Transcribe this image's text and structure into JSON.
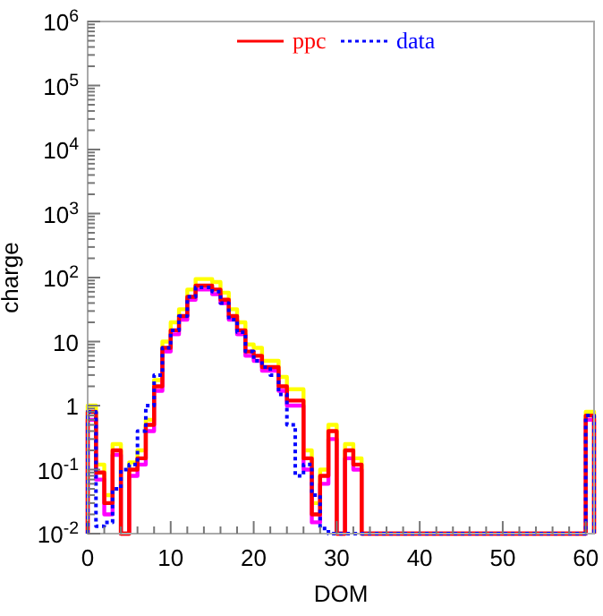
{
  "chart_data": {
    "type": "histogram",
    "xlabel": "DOM",
    "ylabel": "charge",
    "log": "y",
    "legend": "top",
    "xlim": [
      0,
      61
    ],
    "ylim": [
      0.01,
      1000000
    ],
    "xticks": [
      0,
      {
        "value": 2,
        "label": null
      },
      {
        "value": 4,
        "label": null
      },
      {
        "value": 6,
        "label": null
      },
      {
        "value": 8,
        "label": null
      },
      10,
      {
        "value": 12,
        "label": null
      },
      {
        "value": 14,
        "label": null
      },
      {
        "value": 16,
        "label": null
      },
      {
        "value": 18,
        "label": null
      },
      20,
      {
        "value": 22,
        "label": null
      },
      {
        "value": 24,
        "label": null
      },
      {
        "value": 26,
        "label": null
      },
      {
        "value": 28,
        "label": null
      },
      30,
      {
        "value": 32,
        "label": null
      },
      {
        "value": 34,
        "label": null
      },
      {
        "value": 36,
        "label": null
      },
      {
        "value": 38,
        "label": null
      },
      40,
      {
        "value": 42,
        "label": null
      },
      {
        "value": 44,
        "label": null
      },
      {
        "value": 46,
        "label": null
      },
      {
        "value": 48,
        "label": null
      },
      50,
      {
        "value": 52,
        "label": null
      },
      {
        "value": 54,
        "label": null
      },
      {
        "value": 56,
        "label": null
      },
      {
        "value": 58,
        "label": null
      },
      60
    ],
    "yticks": [
      {
        "value": 0.01,
        "label": "10$^{-2}$"
      },
      {
        "value": 0.02,
        "label": null
      },
      {
        "value": 0.03,
        "label": null
      },
      {
        "value": 0.04,
        "label": null
      },
      {
        "value": 0.05,
        "label": null
      },
      {
        "value": 0.06,
        "label": null
      },
      {
        "value": 0.07,
        "label": null
      },
      {
        "value": 0.08,
        "label": null
      },
      {
        "value": 0.09,
        "label": null
      },
      {
        "value": 0.1,
        "label": "10$^{-1}$"
      },
      {
        "value": 0.2,
        "label": null
      },
      {
        "value": 0.3,
        "label": null
      },
      {
        "value": 0.4,
        "label": null
      },
      {
        "value": 0.5,
        "label": null
      },
      {
        "value": 0.6,
        "label": null
      },
      {
        "value": 0.7,
        "label": null
      },
      {
        "value": 0.8,
        "label": null
      },
      {
        "value": 0.9,
        "label": null
      },
      1,
      {
        "value": 2,
        "label": null
      },
      {
        "value": 3,
        "label": null
      },
      {
        "value": 4,
        "label": null
      },
      {
        "value": 5,
        "label": null
      },
      {
        "value": 6,
        "label": null
      },
      {
        "value": 7,
        "label": null
      },
      {
        "value": 8,
        "label": null
      },
      {
        "value": 9,
        "label": null
      },
      10,
      {
        "value": 20,
        "label": null
      },
      {
        "value": 30,
        "label": null
      },
      {
        "value": 40,
        "label": null
      },
      {
        "value": 50,
        "label": null
      },
      {
        "value": 60,
        "label": null
      },
      {
        "value": 70,
        "label": null
      },
      {
        "value": 80,
        "label": null
      },
      {
        "value": 90,
        "label": null
      },
      {
        "value": 100,
        "label": "10$^{2}$"
      },
      {
        "value": 200,
        "label": null
      },
      {
        "value": 300,
        "label": null
      },
      {
        "value": 400,
        "label": null
      },
      {
        "value": 500,
        "label": null
      },
      {
        "value": 600,
        "label": null
      },
      {
        "value": 700,
        "label": null
      },
      {
        "value": 800,
        "label": null
      },
      {
        "value": 900,
        "label": null
      },
      {
        "value": 1000,
        "label": "10$^{3}$"
      },
      {
        "value": 2000,
        "label": null
      },
      {
        "value": 3000,
        "label": null
      },
      {
        "value": 4000,
        "label": null
      },
      {
        "value": 5000,
        "label": null
      },
      {
        "value": 6000,
        "label": null
      },
      {
        "value": 7000,
        "label": null
      },
      {
        "value": 8000,
        "label": null
      },
      {
        "value": 9000,
        "label": null
      },
      {
        "value": 10000,
        "label": "10$^{4}$"
      },
      {
        "value": 20000,
        "label": null
      },
      {
        "value": 30000,
        "label": null
      },
      {
        "value": 40000,
        "label": null
      },
      {
        "value": 50000,
        "label": null
      },
      {
        "value": 60000,
        "label": null
      },
      {
        "value": 70000,
        "label": null
      },
      {
        "value": 80000,
        "label": null
      },
      {
        "value": 90000,
        "label": null
      },
      {
        "value": 100000,
        "label": "10$^{5}$"
      },
      {
        "value": 200000,
        "label": null
      },
      {
        "value": 300000,
        "label": null
      },
      {
        "value": 400000,
        "label": null
      },
      {
        "value": 500000,
        "label": null
      },
      {
        "value": 600000,
        "label": null
      },
      {
        "value": 700000,
        "label": null
      },
      {
        "value": 800000,
        "label": null
      },
      {
        "value": 900000,
        "label": null
      },
      {
        "value": 1000000,
        "label": "10$^{6}$"
      }
    ],
    "bins": [
      0,
      1,
      2,
      3,
      4,
      5,
      6,
      7,
      8,
      9,
      10,
      11,
      12,
      13,
      14,
      15,
      16,
      17,
      18,
      19,
      20,
      21,
      22,
      23,
      24,
      25,
      26,
      27,
      28,
      29,
      30,
      31,
      32,
      33,
      34,
      35,
      36,
      37,
      38,
      39,
      40,
      41,
      42,
      43,
      44,
      45,
      46,
      47,
      48,
      49,
      50,
      51,
      52,
      53,
      54,
      55,
      56,
      57,
      58,
      59,
      60,
      61
    ],
    "series": [
      {
        "color": "#ffff00",
        "line_style": "solid",
        "values": [
          1,
          0.12,
          0.04,
          0.25,
          null,
          0.13,
          0.2,
          0.6,
          2.5,
          10,
          20,
          32,
          65,
          95,
          95,
          85,
          58,
          32,
          20,
          9,
          8,
          5,
          5,
          2.8,
          1.8,
          1.8,
          0.2,
          0.03,
          0.1,
          0.5,
          null,
          0.25,
          0.15,
          null,
          null,
          null,
          null,
          null,
          null,
          null,
          null,
          null,
          null,
          null,
          null,
          null,
          null,
          null,
          null,
          null,
          null,
          null,
          null,
          null,
          null,
          null,
          null,
          null,
          null,
          null,
          0.8
        ]
      },
      {
        "color": "#ff00ff",
        "line_style": "solid",
        "values": [
          0.6,
          0.07,
          0.02,
          0.17,
          null,
          0.08,
          0.12,
          0.4,
          1.7,
          7,
          13,
          22,
          45,
          65,
          65,
          55,
          40,
          22,
          13,
          6,
          5,
          3.5,
          3.5,
          1.7,
          1,
          1,
          0.1,
          0.015,
          0.06,
          0.3,
          null,
          0.15,
          0.1,
          null,
          null,
          null,
          null,
          null,
          null,
          null,
          null,
          null,
          null,
          null,
          null,
          null,
          null,
          null,
          null,
          null,
          null,
          null,
          null,
          null,
          null,
          null,
          null,
          null,
          null,
          null,
          0.6
        ]
      },
      {
        "name": "ppc",
        "color": "#ff0000",
        "line_style": "solid",
        "values": [
          0.8,
          0.09,
          0.03,
          0.2,
          null,
          0.1,
          0.15,
          0.5,
          2,
          8,
          15,
          25,
          50,
          75,
          75,
          65,
          45,
          25,
          15,
          7,
          6,
          4,
          4,
          2,
          1.2,
          1.2,
          0.15,
          0.02,
          0.08,
          0.4,
          null,
          0.2,
          0.12,
          null,
          null,
          null,
          null,
          null,
          null,
          null,
          null,
          null,
          null,
          null,
          null,
          null,
          null,
          null,
          null,
          null,
          null,
          null,
          null,
          null,
          null,
          null,
          null,
          null,
          null,
          null,
          0.7
        ]
      },
      {
        "name": "data",
        "color": "#0000ff",
        "line_style": "dotted",
        "values": [
          0.8,
          0.013,
          0.015,
          0.05,
          0.1,
          0.12,
          0.4,
          1,
          3,
          8,
          15,
          25,
          50,
          70,
          70,
          60,
          40,
          22,
          14,
          7,
          5,
          4,
          3,
          1.5,
          0.5,
          0.08,
          0.12,
          0.04,
          0.012,
          null,
          null,
          null,
          null,
          null,
          null,
          null,
          null,
          null,
          null,
          null,
          null,
          null,
          null,
          null,
          null,
          null,
          null,
          null,
          null,
          null,
          null,
          null,
          null,
          null,
          null,
          null,
          null,
          null,
          null,
          null,
          0.7
        ]
      }
    ]
  }
}
